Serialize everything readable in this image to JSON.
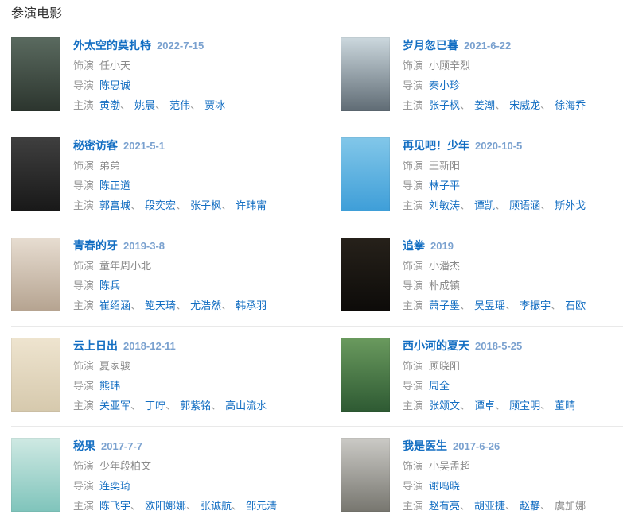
{
  "page": {
    "heading": "参演电影"
  },
  "labels": {
    "role": "饰演",
    "director": "导演",
    "starring": "主演",
    "separator": "、"
  },
  "colors": {
    "link_blue": "#136ec2",
    "date_blue": "#7aa1cf",
    "label_gray": "#999999",
    "plain_text_gray": "#8a8a8a",
    "divider": "#e9e9e9",
    "heading_text": "#333333",
    "background": "#ffffff"
  },
  "movies": [
    {
      "title": "外太空的莫扎特",
      "date": "2022-7-15",
      "role": "任小天",
      "directors": [
        {
          "name": "陈思诚",
          "link": true
        }
      ],
      "starring": [
        {
          "name": "黄渤",
          "link": true
        },
        {
          "name": "姚晨",
          "link": true
        },
        {
          "name": "范伟",
          "link": true
        },
        {
          "name": "贾冰",
          "link": true
        }
      ],
      "poster_colors": [
        "#5a6a5f",
        "#2c352e"
      ]
    },
    {
      "title": "岁月忽已暮",
      "date": "2021-6-22",
      "role": "小顾辛烈",
      "directors": [
        {
          "name": "秦小珍",
          "link": true
        }
      ],
      "starring": [
        {
          "name": "张子枫",
          "link": true
        },
        {
          "name": "姜潮",
          "link": true
        },
        {
          "name": "宋威龙",
          "link": true
        },
        {
          "name": "徐海乔",
          "link": true
        }
      ],
      "poster_colors": [
        "#ccd8de",
        "#5f6b74"
      ]
    },
    {
      "title": "秘密访客",
      "date": "2021-5-1",
      "role": "弟弟",
      "directors": [
        {
          "name": "陈正道",
          "link": true
        }
      ],
      "starring": [
        {
          "name": "郭富城",
          "link": true
        },
        {
          "name": "段奕宏",
          "link": true
        },
        {
          "name": "张子枫",
          "link": true
        },
        {
          "name": "许玮甯",
          "link": true
        }
      ],
      "poster_colors": [
        "#3f3f3f",
        "#181818"
      ]
    },
    {
      "title": "再见吧！少年",
      "date": "2020-10-5",
      "role": "王新阳",
      "directors": [
        {
          "name": "林子平",
          "link": true
        }
      ],
      "starring": [
        {
          "name": "刘敏涛",
          "link": true
        },
        {
          "name": "谭凯",
          "link": true
        },
        {
          "name": "顾语涵",
          "link": true
        },
        {
          "name": "斯外戈",
          "link": true
        }
      ],
      "poster_colors": [
        "#82c7e9",
        "#3e9ed8"
      ]
    },
    {
      "title": "青春的牙",
      "date": "2019-3-8",
      "role": "童年周小北",
      "directors": [
        {
          "name": "陈兵",
          "link": true
        }
      ],
      "starring": [
        {
          "name": "崔绍涵",
          "link": true
        },
        {
          "name": "鲍天琦",
          "link": true
        },
        {
          "name": "尤浩然",
          "link": true
        },
        {
          "name": "韩承羽",
          "link": true
        }
      ],
      "poster_colors": [
        "#e7ddd1",
        "#b5a390"
      ]
    },
    {
      "title": "追拳",
      "date": "2019",
      "role": "小潘杰",
      "directors": [
        {
          "name": "朴成镇",
          "link": false
        }
      ],
      "starring": [
        {
          "name": "萧子墨",
          "link": true
        },
        {
          "name": "吴昱瑶",
          "link": true
        },
        {
          "name": "李振宇",
          "link": true
        },
        {
          "name": "石欧",
          "link": true
        }
      ],
      "poster_colors": [
        "#26211a",
        "#0d0b09"
      ]
    },
    {
      "title": "云上日出",
      "date": "2018-12-11",
      "role": "夏家骏",
      "directors": [
        {
          "name": "熊玮",
          "link": true
        }
      ],
      "starring": [
        {
          "name": "关亚军",
          "link": true
        },
        {
          "name": "丁咛",
          "link": true
        },
        {
          "name": "郭紫铭",
          "link": true
        },
        {
          "name": "高山流水",
          "link": true
        }
      ],
      "poster_colors": [
        "#eee4cf",
        "#d6c9ad"
      ]
    },
    {
      "title": "西小河的夏天",
      "date": "2018-5-25",
      "role": "顾晓阳",
      "directors": [
        {
          "name": "周全",
          "link": true
        }
      ],
      "starring": [
        {
          "name": "张颂文",
          "link": true
        },
        {
          "name": "谭卓",
          "link": true
        },
        {
          "name": "顾宝明",
          "link": true
        },
        {
          "name": "董晴",
          "link": true
        }
      ],
      "poster_colors": [
        "#6a9a5e",
        "#2e5a33"
      ]
    },
    {
      "title": "秘果",
      "date": "2017-7-7",
      "role": "少年段柏文",
      "directors": [
        {
          "name": "连奕琦",
          "link": true
        }
      ],
      "starring": [
        {
          "name": "陈飞宇",
          "link": true
        },
        {
          "name": "欧阳娜娜",
          "link": true
        },
        {
          "name": "张诚航",
          "link": true
        },
        {
          "name": "邹元清",
          "link": true
        }
      ],
      "poster_colors": [
        "#cfe9e3",
        "#7fc4bb"
      ]
    },
    {
      "title": "我是医生",
      "date": "2017-6-26",
      "role": "小吴孟超",
      "directors": [
        {
          "name": "谢鸣晓",
          "link": true
        }
      ],
      "starring": [
        {
          "name": "赵有亮",
          "link": true
        },
        {
          "name": "胡亚捷",
          "link": true
        },
        {
          "name": "赵静",
          "link": true
        },
        {
          "name": "虞加娜",
          "link": false
        }
      ],
      "poster_colors": [
        "#cbcac6",
        "#77766f"
      ]
    }
  ]
}
